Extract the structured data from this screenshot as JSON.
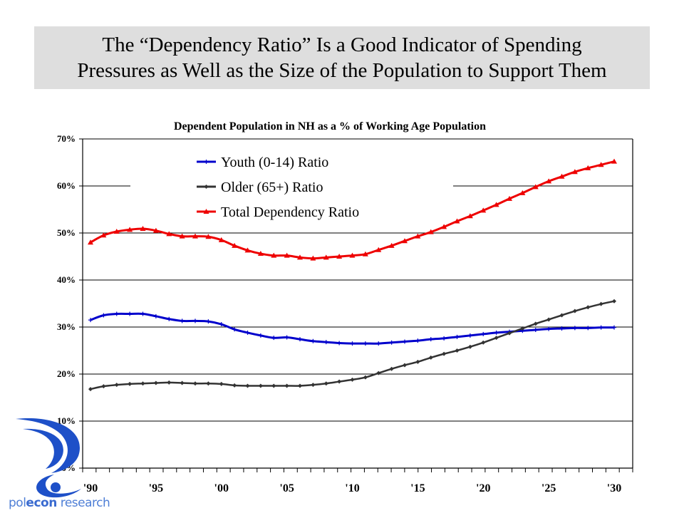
{
  "slide": {
    "title_line1": "The “Dependency Ratio” Is a Good Indicator of Spending",
    "title_line2": "Pressures as Well as the Size of the Population to Support Them"
  },
  "logo": {
    "text_part1": "pol",
    "text_part2": "econ",
    "text_part3": " research",
    "icon": "polecon-swirl-logo-icon"
  },
  "chart_data": {
    "type": "line",
    "title": "Dependent Population in NH as a % of Working Age Population",
    "xlabel": "",
    "ylabel": "",
    "ylim": [
      0,
      70
    ],
    "xlim": [
      1990,
      2030
    ],
    "y_ticks": [
      0,
      10,
      20,
      30,
      40,
      50,
      60,
      70
    ],
    "y_tick_labels": [
      "0%",
      "10%",
      "20%",
      "30%",
      "40%",
      "50%",
      "60%",
      "70%"
    ],
    "x_ticks": [
      1990,
      1995,
      2000,
      2005,
      2010,
      2015,
      2020,
      2025,
      2030
    ],
    "x_tick_labels": [
      "'90",
      "'95",
      "'00",
      "'05",
      "'10",
      "'15",
      "'20",
      "'25",
      "'30"
    ],
    "grid": "horizontal",
    "legend_position": "top-left",
    "x": [
      1990,
      1991,
      1992,
      1993,
      1994,
      1995,
      1996,
      1997,
      1998,
      1999,
      2000,
      2001,
      2002,
      2003,
      2004,
      2005,
      2006,
      2007,
      2008,
      2009,
      2010,
      2011,
      2012,
      2013,
      2014,
      2015,
      2016,
      2017,
      2018,
      2019,
      2020,
      2021,
      2022,
      2023,
      2024,
      2025,
      2026,
      2027,
      2028,
      2029,
      2030
    ],
    "series": [
      {
        "name": "Youth (0-14) Ratio",
        "color": "#0000cc",
        "marker": "plus",
        "values": [
          31.5,
          32.5,
          32.8,
          32.8,
          32.8,
          32.3,
          31.7,
          31.3,
          31.3,
          31.2,
          30.6,
          29.5,
          28.8,
          28.2,
          27.7,
          27.8,
          27.4,
          27.0,
          26.8,
          26.6,
          26.5,
          26.5,
          26.5,
          26.7,
          26.9,
          27.1,
          27.4,
          27.6,
          27.9,
          28.2,
          28.5,
          28.8,
          29.0,
          29.2,
          29.4,
          29.6,
          29.7,
          29.8,
          29.8,
          29.9,
          29.9
        ]
      },
      {
        "name": "Older (65+) Ratio",
        "color": "#333333",
        "marker": "diamond",
        "values": [
          16.8,
          17.4,
          17.7,
          17.9,
          18.0,
          18.1,
          18.2,
          18.1,
          18.0,
          18.0,
          17.9,
          17.6,
          17.5,
          17.5,
          17.5,
          17.5,
          17.5,
          17.7,
          18.0,
          18.4,
          18.8,
          19.3,
          20.2,
          21.1,
          21.9,
          22.6,
          23.5,
          24.3,
          25.0,
          25.8,
          26.7,
          27.7,
          28.7,
          29.7,
          30.7,
          31.6,
          32.5,
          33.4,
          34.2,
          34.9,
          35.5
        ]
      },
      {
        "name": "Total Dependency Ratio",
        "color": "#ee0000",
        "marker": "triangle",
        "values": [
          48.0,
          49.5,
          50.3,
          50.7,
          50.9,
          50.5,
          49.8,
          49.3,
          49.3,
          49.2,
          48.5,
          47.3,
          46.3,
          45.6,
          45.2,
          45.2,
          44.8,
          44.6,
          44.8,
          45.0,
          45.2,
          45.5,
          46.4,
          47.3,
          48.3,
          49.3,
          50.2,
          51.3,
          52.5,
          53.6,
          54.8,
          56.0,
          57.3,
          58.5,
          59.8,
          61.0,
          62.0,
          63.0,
          63.8,
          64.5,
          65.2
        ]
      }
    ]
  }
}
